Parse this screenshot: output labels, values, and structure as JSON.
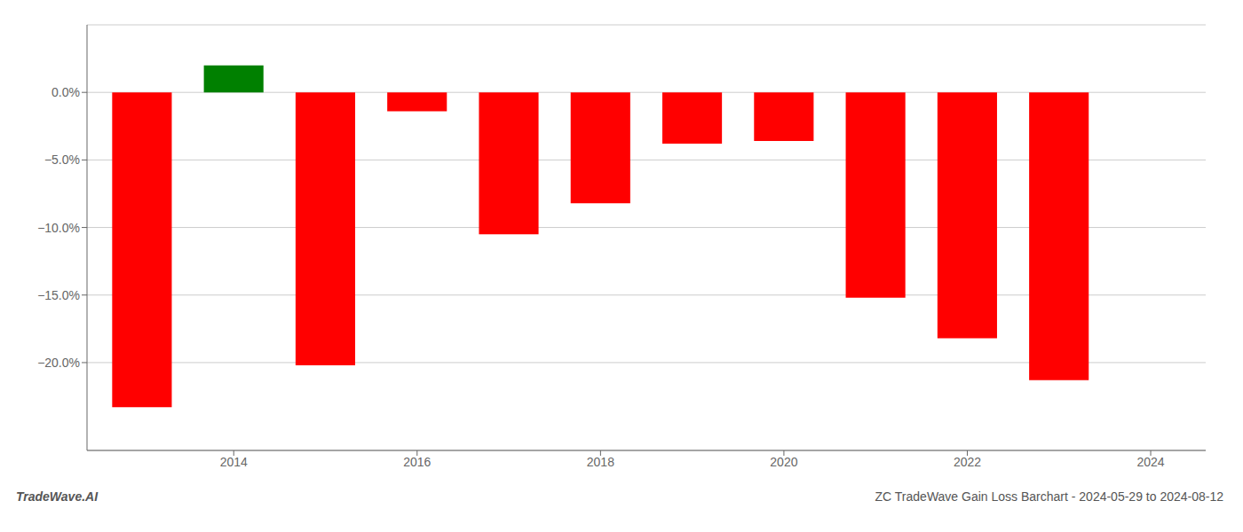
{
  "chart_data": {
    "type": "bar",
    "x": [
      2013,
      2014,
      2015,
      2016,
      2017,
      2018,
      2019,
      2020,
      2021,
      2022,
      2023
    ],
    "values": [
      -0.233,
      0.02,
      -0.202,
      -0.014,
      -0.105,
      -0.082,
      -0.038,
      -0.036,
      -0.152,
      -0.182,
      -0.213
    ],
    "colors": [
      "#ff0000",
      "#008000",
      "#ff0000",
      "#ff0000",
      "#ff0000",
      "#ff0000",
      "#ff0000",
      "#ff0000",
      "#ff0000",
      "#ff0000",
      "#ff0000"
    ],
    "xlim": [
      2012.4,
      2024.6
    ],
    "xticks": [
      2014,
      2016,
      2018,
      2020,
      2022,
      2024
    ],
    "ylim": [
      -0.265,
      0.05
    ],
    "yticks": [
      {
        "value": 0.0,
        "label": "0.0%"
      },
      {
        "value": -0.05,
        "label": "−5.0%"
      },
      {
        "value": -0.1,
        "label": "−10.0%"
      },
      {
        "value": -0.15,
        "label": "−15.0%"
      },
      {
        "value": -0.2,
        "label": "−20.0%"
      }
    ],
    "grid": true,
    "annotations": [
      "TradeWave.AI",
      "ZC TradeWave Gain Loss Barchart - 2024-05-29 to 2024-08-12"
    ]
  }
}
